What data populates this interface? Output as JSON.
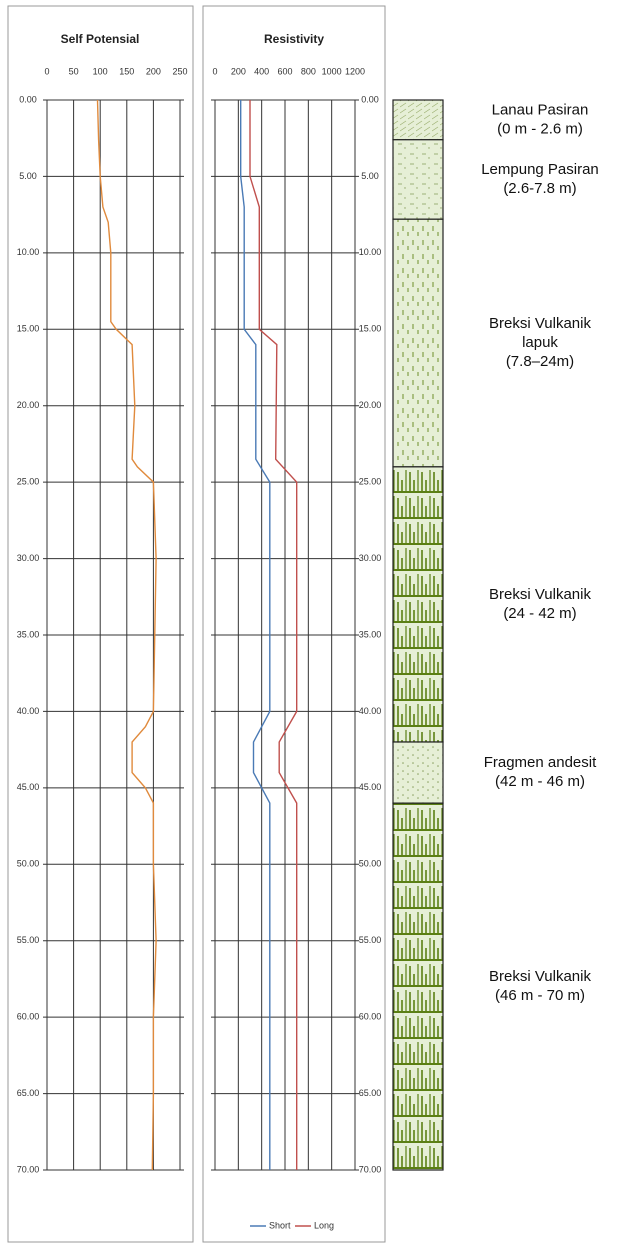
{
  "chart_data": [
    {
      "type": "line",
      "title": "Self Potensial",
      "xlim": [
        0,
        250
      ],
      "xticks": [
        0,
        50,
        100,
        150,
        200,
        250
      ],
      "ylim": [
        0,
        70
      ],
      "inverted_y": true,
      "yticks": [
        {
          "value": 0,
          "label": "0.00"
        },
        {
          "value": 5,
          "label": "5.00"
        },
        {
          "value": 10,
          "label": "10.00"
        },
        {
          "value": 15,
          "label": "15.00"
        },
        {
          "value": 20,
          "label": "20.00"
        },
        {
          "value": 25,
          "label": "25.00"
        },
        {
          "value": 30,
          "label": "30.00"
        },
        {
          "value": 35,
          "label": "35.00"
        },
        {
          "value": 40,
          "label": "40.00"
        },
        {
          "value": 45,
          "label": "45.00"
        },
        {
          "value": 50,
          "label": "50.00"
        },
        {
          "value": 55,
          "label": "55.00"
        },
        {
          "value": 60,
          "label": "60.00"
        },
        {
          "value": 65,
          "label": "65.00"
        },
        {
          "value": 70,
          "label": "70.00"
        }
      ],
      "grid": true,
      "y": [
        0,
        2.6,
        5,
        7,
        8,
        10,
        14.5,
        15,
        16,
        20,
        23.5,
        24,
        25,
        30,
        40,
        41,
        42,
        44,
        45,
        46,
        50,
        55,
        60,
        65,
        70
      ],
      "series": [
        {
          "color": "#e08a3c",
          "values": [
            95,
            97,
            100,
            105,
            115,
            120,
            120,
            130,
            160,
            165,
            160,
            170,
            200,
            205,
            200,
            185,
            160,
            160,
            185,
            200,
            200,
            205,
            200,
            200,
            198
          ]
        }
      ]
    },
    {
      "type": "line",
      "title": "Resistivity",
      "xlim": [
        0,
        1200
      ],
      "xticks": [
        0,
        200,
        400,
        600,
        800,
        1000,
        1200
      ],
      "ylim": [
        0,
        70
      ],
      "inverted_y": true,
      "yticks": [
        {
          "value": 0,
          "label": "0.00"
        },
        {
          "value": 5,
          "label": "5.00"
        },
        {
          "value": 10,
          "label": "10.00"
        },
        {
          "value": 15,
          "label": "15.00"
        },
        {
          "value": 20,
          "label": "20.00"
        },
        {
          "value": 25,
          "label": "25.00"
        },
        {
          "value": 30,
          "label": "30.00"
        },
        {
          "value": 35,
          "label": "35.00"
        },
        {
          "value": 40,
          "label": "40.00"
        },
        {
          "value": 45,
          "label": "45.00"
        },
        {
          "value": 50,
          "label": "50.00"
        },
        {
          "value": 55,
          "label": "55.00"
        },
        {
          "value": 60,
          "label": "60.00"
        },
        {
          "value": 65,
          "label": "65.00"
        },
        {
          "value": 70,
          "label": "70.00"
        }
      ],
      "grid": true,
      "legend": "bottom",
      "y": [
        0,
        5,
        7,
        7.8,
        15,
        16,
        23.5,
        25,
        40,
        42,
        44,
        46,
        70
      ],
      "series": [
        {
          "name": "Short",
          "color": "#4a7ab5",
          "values": [
            220,
            220,
            250,
            250,
            250,
            350,
            350,
            470,
            470,
            330,
            330,
            470,
            470
          ]
        },
        {
          "name": "Long",
          "color": "#c0504d",
          "values": [
            300,
            300,
            380,
            380,
            380,
            530,
            520,
            700,
            700,
            550,
            550,
            700,
            700
          ]
        }
      ]
    }
  ],
  "lithology": [
    {
      "lines": [
        "Lanau Pasiran",
        "(0 m - 2.6 m)"
      ],
      "top": 0,
      "bottom": 2.6
    },
    {
      "lines": [
        "Lempung Pasiran",
        "(2.6-7.8 m)"
      ],
      "top": 2.6,
      "bottom": 7.8
    },
    {
      "lines": [
        "Breksi Vulkanik",
        "lapuk",
        "(7.8–24m)"
      ],
      "top": 7.8,
      "bottom": 24
    },
    {
      "lines": [
        "Breksi Vulkanik",
        "(24 - 42 m)"
      ],
      "top": 24,
      "bottom": 42
    },
    {
      "lines": [
        "Fragmen andesit",
        "(42 m - 46 m)"
      ],
      "top": 42,
      "bottom": 46
    },
    {
      "lines": [
        "Breksi Vulkanik",
        "(46 m - 70 m)"
      ],
      "top": 46,
      "bottom": 70
    }
  ]
}
